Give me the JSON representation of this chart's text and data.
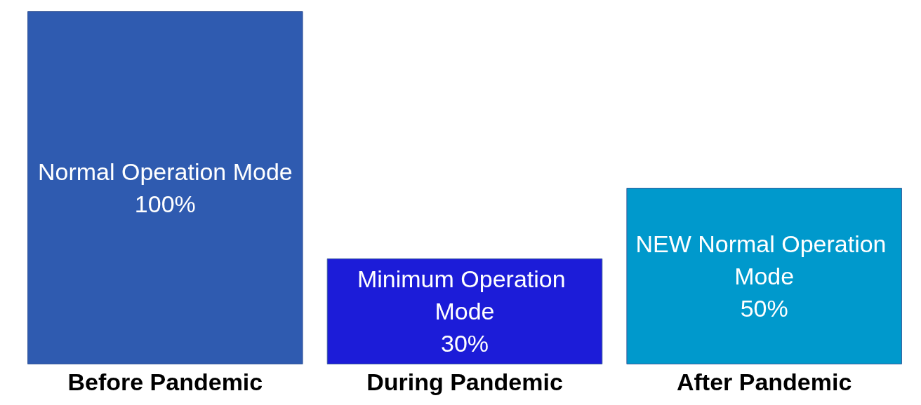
{
  "chart_data": {
    "type": "bar",
    "categories": [
      "Before Pandemic",
      "During Pandemic",
      "After Pandemic"
    ],
    "values": [
      100,
      30,
      50
    ],
    "colors": [
      "#2f5bb0",
      "#1c1cd8",
      "#0099cc"
    ],
    "value_labels": [
      "100%",
      "30%",
      "50%"
    ],
    "annotations": [
      "Normal Operation Mode",
      "Minimum Operation Mode",
      "NEW Normal Operation Mode"
    ],
    "ylim": [
      0,
      100
    ],
    "grid": false
  }
}
